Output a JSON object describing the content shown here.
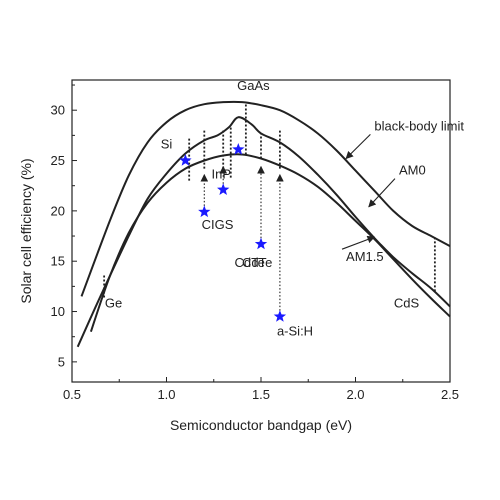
{
  "chart_data": {
    "type": "line",
    "title": "",
    "xlabel": "Semiconductor bandgap (eV)",
    "ylabel": "Solar cell efficiency (%)",
    "xlim": [
      0.5,
      2.5
    ],
    "ylim": [
      3,
      33
    ],
    "xticks": [
      "0.5",
      "1.0",
      "1.5",
      "2.0",
      "2.5"
    ],
    "yticks": [
      "5",
      "10",
      "15",
      "20",
      "25",
      "30"
    ],
    "grid": false,
    "series": [
      {
        "name": "black-body limit",
        "points": [
          [
            0.55,
            11.5
          ],
          [
            0.7,
            19
          ],
          [
            0.8,
            23.5
          ],
          [
            0.9,
            26.8
          ],
          [
            1.0,
            28.8
          ],
          [
            1.1,
            30
          ],
          [
            1.2,
            30.6
          ],
          [
            1.3,
            30.8
          ],
          [
            1.4,
            30.8
          ],
          [
            1.5,
            30.5
          ],
          [
            1.6,
            30
          ],
          [
            1.7,
            29
          ],
          [
            1.8,
            27.7
          ],
          [
            1.9,
            26
          ],
          [
            2.0,
            24
          ],
          [
            2.1,
            22
          ],
          [
            2.2,
            20
          ],
          [
            2.3,
            18.5
          ],
          [
            2.4,
            17.5
          ],
          [
            2.5,
            16.5
          ]
        ]
      },
      {
        "name": "AM0",
        "points": [
          [
            0.53,
            6.5
          ],
          [
            0.65,
            11.5
          ],
          [
            0.8,
            17.5
          ],
          [
            0.9,
            21.2
          ],
          [
            1.0,
            23.7
          ],
          [
            1.1,
            25.7
          ],
          [
            1.2,
            27
          ],
          [
            1.27,
            27.5
          ],
          [
            1.33,
            28.3
          ],
          [
            1.38,
            29.3
          ],
          [
            1.45,
            28.6
          ],
          [
            1.5,
            27.7
          ],
          [
            1.6,
            26.8
          ],
          [
            1.7,
            25.4
          ],
          [
            1.8,
            23.6
          ],
          [
            1.9,
            21.6
          ],
          [
            2.0,
            19.4
          ],
          [
            2.1,
            17.3
          ],
          [
            2.2,
            15.4
          ],
          [
            2.3,
            13.8
          ],
          [
            2.4,
            12.3
          ],
          [
            2.5,
            10.5
          ]
        ]
      },
      {
        "name": "AM1.5",
        "points": [
          [
            0.6,
            8
          ],
          [
            0.7,
            13.5
          ],
          [
            0.8,
            17.8
          ],
          [
            0.9,
            20.8
          ],
          [
            1.0,
            22.8
          ],
          [
            1.1,
            24.2
          ],
          [
            1.2,
            25
          ],
          [
            1.3,
            25.5
          ],
          [
            1.4,
            25.6
          ],
          [
            1.5,
            25.2
          ],
          [
            1.6,
            24.5
          ],
          [
            1.7,
            23.6
          ],
          [
            1.8,
            22.4
          ],
          [
            1.9,
            20.8
          ],
          [
            2.0,
            19
          ],
          [
            2.1,
            17.2
          ],
          [
            2.2,
            15.2
          ],
          [
            2.3,
            13.2
          ],
          [
            2.4,
            11.3
          ],
          [
            2.5,
            9.5
          ]
        ]
      }
    ],
    "curve_labels": [
      {
        "text": "black-body limit",
        "x": 2.1,
        "y": 28.0,
        "arrow_to": [
          1.95,
          25.2
        ]
      },
      {
        "text": "AM0",
        "x": 2.23,
        "y": 23.6,
        "arrow_to": [
          2.07,
          20.4
        ]
      },
      {
        "text": "AM1.5",
        "x": 1.95,
        "y": 15.0,
        "arrow_to": [
          2.1,
          17.4
        ]
      }
    ],
    "materials": [
      {
        "name": "Ge",
        "bandgap": 0.67,
        "label_x": 0.72,
        "label_y": 10.4,
        "marker_low": 11.4,
        "marker_high": 13.6
      },
      {
        "name": "Si",
        "bandgap": 1.12,
        "label_x": 1.0,
        "label_y": 26.2,
        "marker_low": 23.0,
        "marker_high": 27.2
      },
      {
        "name": "InP",
        "bandgap": 1.34,
        "label_x": 1.29,
        "label_y": 23.2,
        "marker_low": 23.3,
        "marker_high": 28.4
      },
      {
        "name": "GaAs",
        "bandgap": 1.42,
        "label_x": 1.46,
        "label_y": 32.0,
        "marker_low": 25.6,
        "marker_high": 30.8
      },
      {
        "name": "CdTe",
        "bandgap": 1.5,
        "label_x": 1.44,
        "label_y": 14.4,
        "marker_low": 25.2,
        "marker_high": 27.7
      },
      {
        "name": "CdS",
        "bandgap": 2.42,
        "label_x": 2.27,
        "label_y": 10.4,
        "marker_low": 12.0,
        "marker_high": 17.5
      }
    ],
    "marker_extra_lines": [
      1.2,
      1.3,
      1.6
    ],
    "efficiency_points": [
      {
        "name": "Si",
        "x": 1.1,
        "y": 25.0,
        "arrow": false
      },
      {
        "name": "CIGS",
        "x": 1.2,
        "y": 19.9,
        "arrow": true,
        "arrow_top": 23.6
      },
      {
        "name": "InP",
        "x": 1.3,
        "y": 22.1,
        "arrow": true,
        "arrow_top": 24.4
      },
      {
        "name": "GaAs",
        "x": 1.38,
        "y": 26.1,
        "arrow": false
      },
      {
        "name": "CdTe",
        "x": 1.5,
        "y": 16.7,
        "arrow": true,
        "arrow_top": 24.4
      },
      {
        "name": "a-Si:H",
        "x": 1.6,
        "y": 9.5,
        "arrow": true,
        "arrow_top": 23.6
      }
    ],
    "point_labels": [
      {
        "text": "CIGS",
        "x": 1.27,
        "y": 18.2
      },
      {
        "text": "CdTe",
        "x": 1.48,
        "y": 14.4
      },
      {
        "text": "a-Si:H",
        "x": 1.68,
        "y": 7.6
      }
    ],
    "colors": {
      "curves": "#222222",
      "points": "#1a1aff",
      "axis": "#222222"
    }
  }
}
